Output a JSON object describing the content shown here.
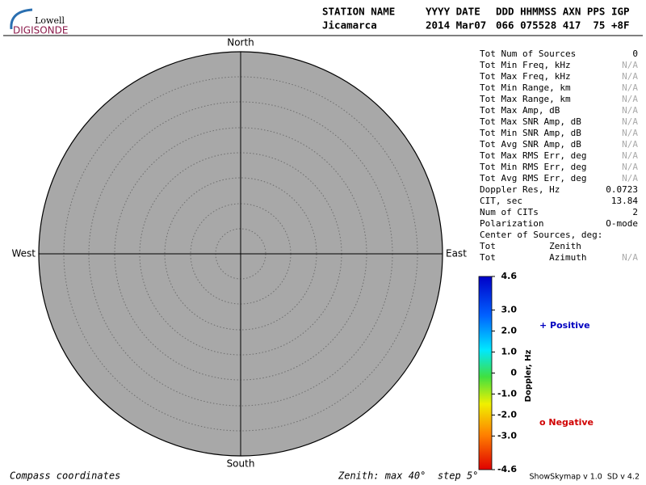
{
  "header": {
    "logo": {
      "top": "Lowell",
      "bottom": "DIGISONDE"
    },
    "columns": [
      "STATION NAME",
      "YYYY DATE",
      "DDD HHMMSS AXN PPS IGP"
    ],
    "values": [
      "Jicamarca",
      "2014 Mar07",
      "066 075528 417  75 +8F"
    ]
  },
  "compass": {
    "north": "North",
    "south": "South",
    "west": "West",
    "east": "East"
  },
  "stats": [
    {
      "label": "Tot Num of Sources",
      "value": "0"
    },
    {
      "label": "Tot Min Freq, kHz",
      "value": "N/A"
    },
    {
      "label": "Tot Max Freq, kHz",
      "value": "N/A"
    },
    {
      "label": "Tot Min Range, km",
      "value": "N/A"
    },
    {
      "label": "Tot Max Range, km",
      "value": "N/A"
    },
    {
      "label": "Tot Max Amp, dB",
      "value": "N/A"
    },
    {
      "label": "Tot Max SNR Amp, dB",
      "value": "N/A"
    },
    {
      "label": "Tot Min SNR Amp, dB",
      "value": "N/A"
    },
    {
      "label": "Tot Avg SNR Amp, dB",
      "value": "N/A"
    },
    {
      "label": "Tot Max RMS Err, deg",
      "value": "N/A"
    },
    {
      "label": "Tot Min RMS Err, deg",
      "value": "N/A"
    },
    {
      "label": "Tot Avg RMS Err, deg",
      "value": "N/A"
    },
    {
      "label": "Doppler Res, Hz",
      "value": "0.0723"
    },
    {
      "label": "CIT, sec",
      "value": "13.84"
    },
    {
      "label": "Num of CITs",
      "value": "2"
    },
    {
      "label": "Polarization",
      "value": "O-mode"
    },
    {
      "label": "Center of Sources, deg:"
    },
    {
      "label": "Tot          Zenith"
    },
    {
      "label": "Tot          Azimuth",
      "value": "N/A"
    }
  ],
  "colorbar": {
    "label": "Doppler, Hz",
    "range": [
      -4.6,
      4.6
    ],
    "ticks": [
      {
        "value": 4.6,
        "label": "4.6"
      },
      {
        "value": 3,
        "label": "3.0"
      },
      {
        "value": 2,
        "label": "2.0"
      },
      {
        "value": 1,
        "label": "1.0"
      },
      0,
      {
        "value": -1,
        "label": "-1.0"
      },
      {
        "value": -2,
        "label": "-2.0"
      },
      {
        "value": -3,
        "label": "-3.0"
      },
      {
        "value": -4.6,
        "label": "-4.6"
      }
    ]
  },
  "legend": {
    "positive": "+ Positive",
    "negative": "o Negative"
  },
  "footer": {
    "left": "Compass coordinates",
    "zenith": "Zenith: max 40°  step 5°",
    "version": "ShowSkymap v 1.0  SD v 4.2"
  }
}
